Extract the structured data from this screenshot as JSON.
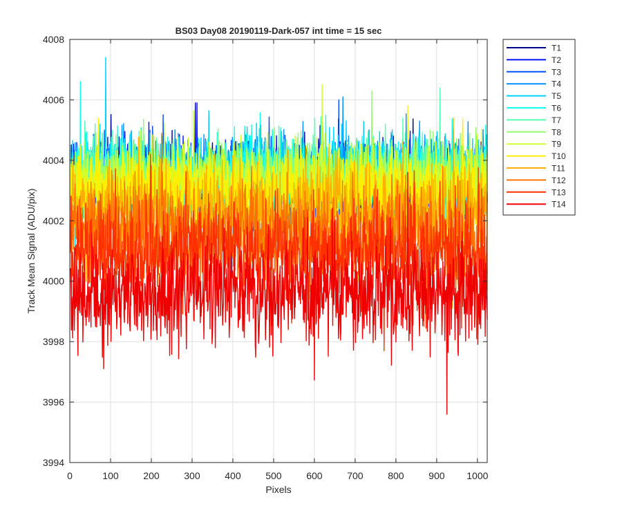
{
  "chart_data": {
    "type": "line",
    "title": "BS03 Day08 20190119-Dark-057 int time = 15 sec",
    "xlabel": "Pixels",
    "ylabel": "Track Mean Signal (ADU/pix)",
    "xlim": [
      0,
      1024
    ],
    "ylim": [
      3994,
      4008
    ],
    "xticks": [
      0,
      100,
      200,
      300,
      400,
      500,
      600,
      700,
      800,
      900,
      1000
    ],
    "yticks": [
      3994,
      3996,
      3998,
      4000,
      4002,
      4004,
      4006,
      4008
    ],
    "grid": true,
    "legend_position": "outside-top-right",
    "series": [
      {
        "name": "T1",
        "color": "#00008f",
        "mean": 4003.3,
        "noise_sd": 0.6,
        "max": 4005.9,
        "min": 4000.0
      },
      {
        "name": "T2",
        "color": "#0010ff",
        "mean": 4003.4,
        "noise_sd": 0.6,
        "max": 4005.9,
        "min": 4000.0
      },
      {
        "name": "T3",
        "color": "#0050ff",
        "mean": 4003.4,
        "noise_sd": 0.6,
        "max": 4006.0,
        "min": 4000.2
      },
      {
        "name": "T4",
        "color": "#0090ff",
        "mean": 4003.5,
        "noise_sd": 0.6,
        "max": 4006.1,
        "min": 4000.5
      },
      {
        "name": "T5",
        "color": "#00d0ff",
        "mean": 4003.6,
        "noise_sd": 0.6,
        "max": 4007.4,
        "min": 4000.8
      },
      {
        "name": "T6",
        "color": "#10ffef",
        "mean": 4003.6,
        "noise_sd": 0.6,
        "max": 4006.6,
        "min": 4000.8
      },
      {
        "name": "T7",
        "color": "#50ffaf",
        "mean": 4003.5,
        "noise_sd": 0.6,
        "max": 4006.4,
        "min": 4000.6
      },
      {
        "name": "T8",
        "color": "#90ff70",
        "mean": 4003.4,
        "noise_sd": 0.6,
        "max": 4006.3,
        "min": 4000.3
      },
      {
        "name": "T9",
        "color": "#cfff30",
        "mean": 4003.2,
        "noise_sd": 0.65,
        "max": 4006.5,
        "min": 4000.0
      },
      {
        "name": "T10",
        "color": "#ffef00",
        "mean": 4002.9,
        "noise_sd": 0.7,
        "max": 4005.8,
        "min": 3999.6
      },
      {
        "name": "T11",
        "color": "#ffaf00",
        "mean": 4002.3,
        "noise_sd": 0.75,
        "max": 4005.4,
        "min": 3999.1
      },
      {
        "name": "T12",
        "color": "#ff7000",
        "mean": 4001.6,
        "noise_sd": 0.8,
        "max": 4004.9,
        "min": 3998.5
      },
      {
        "name": "T13",
        "color": "#ff3000",
        "mean": 4000.9,
        "noise_sd": 0.85,
        "max": 4004.2,
        "min": 3997.7
      },
      {
        "name": "T14",
        "color": "#ef0000",
        "mean": 3999.6,
        "noise_sd": 0.85,
        "max": 4003.6,
        "min": 3995.6
      }
    ]
  }
}
